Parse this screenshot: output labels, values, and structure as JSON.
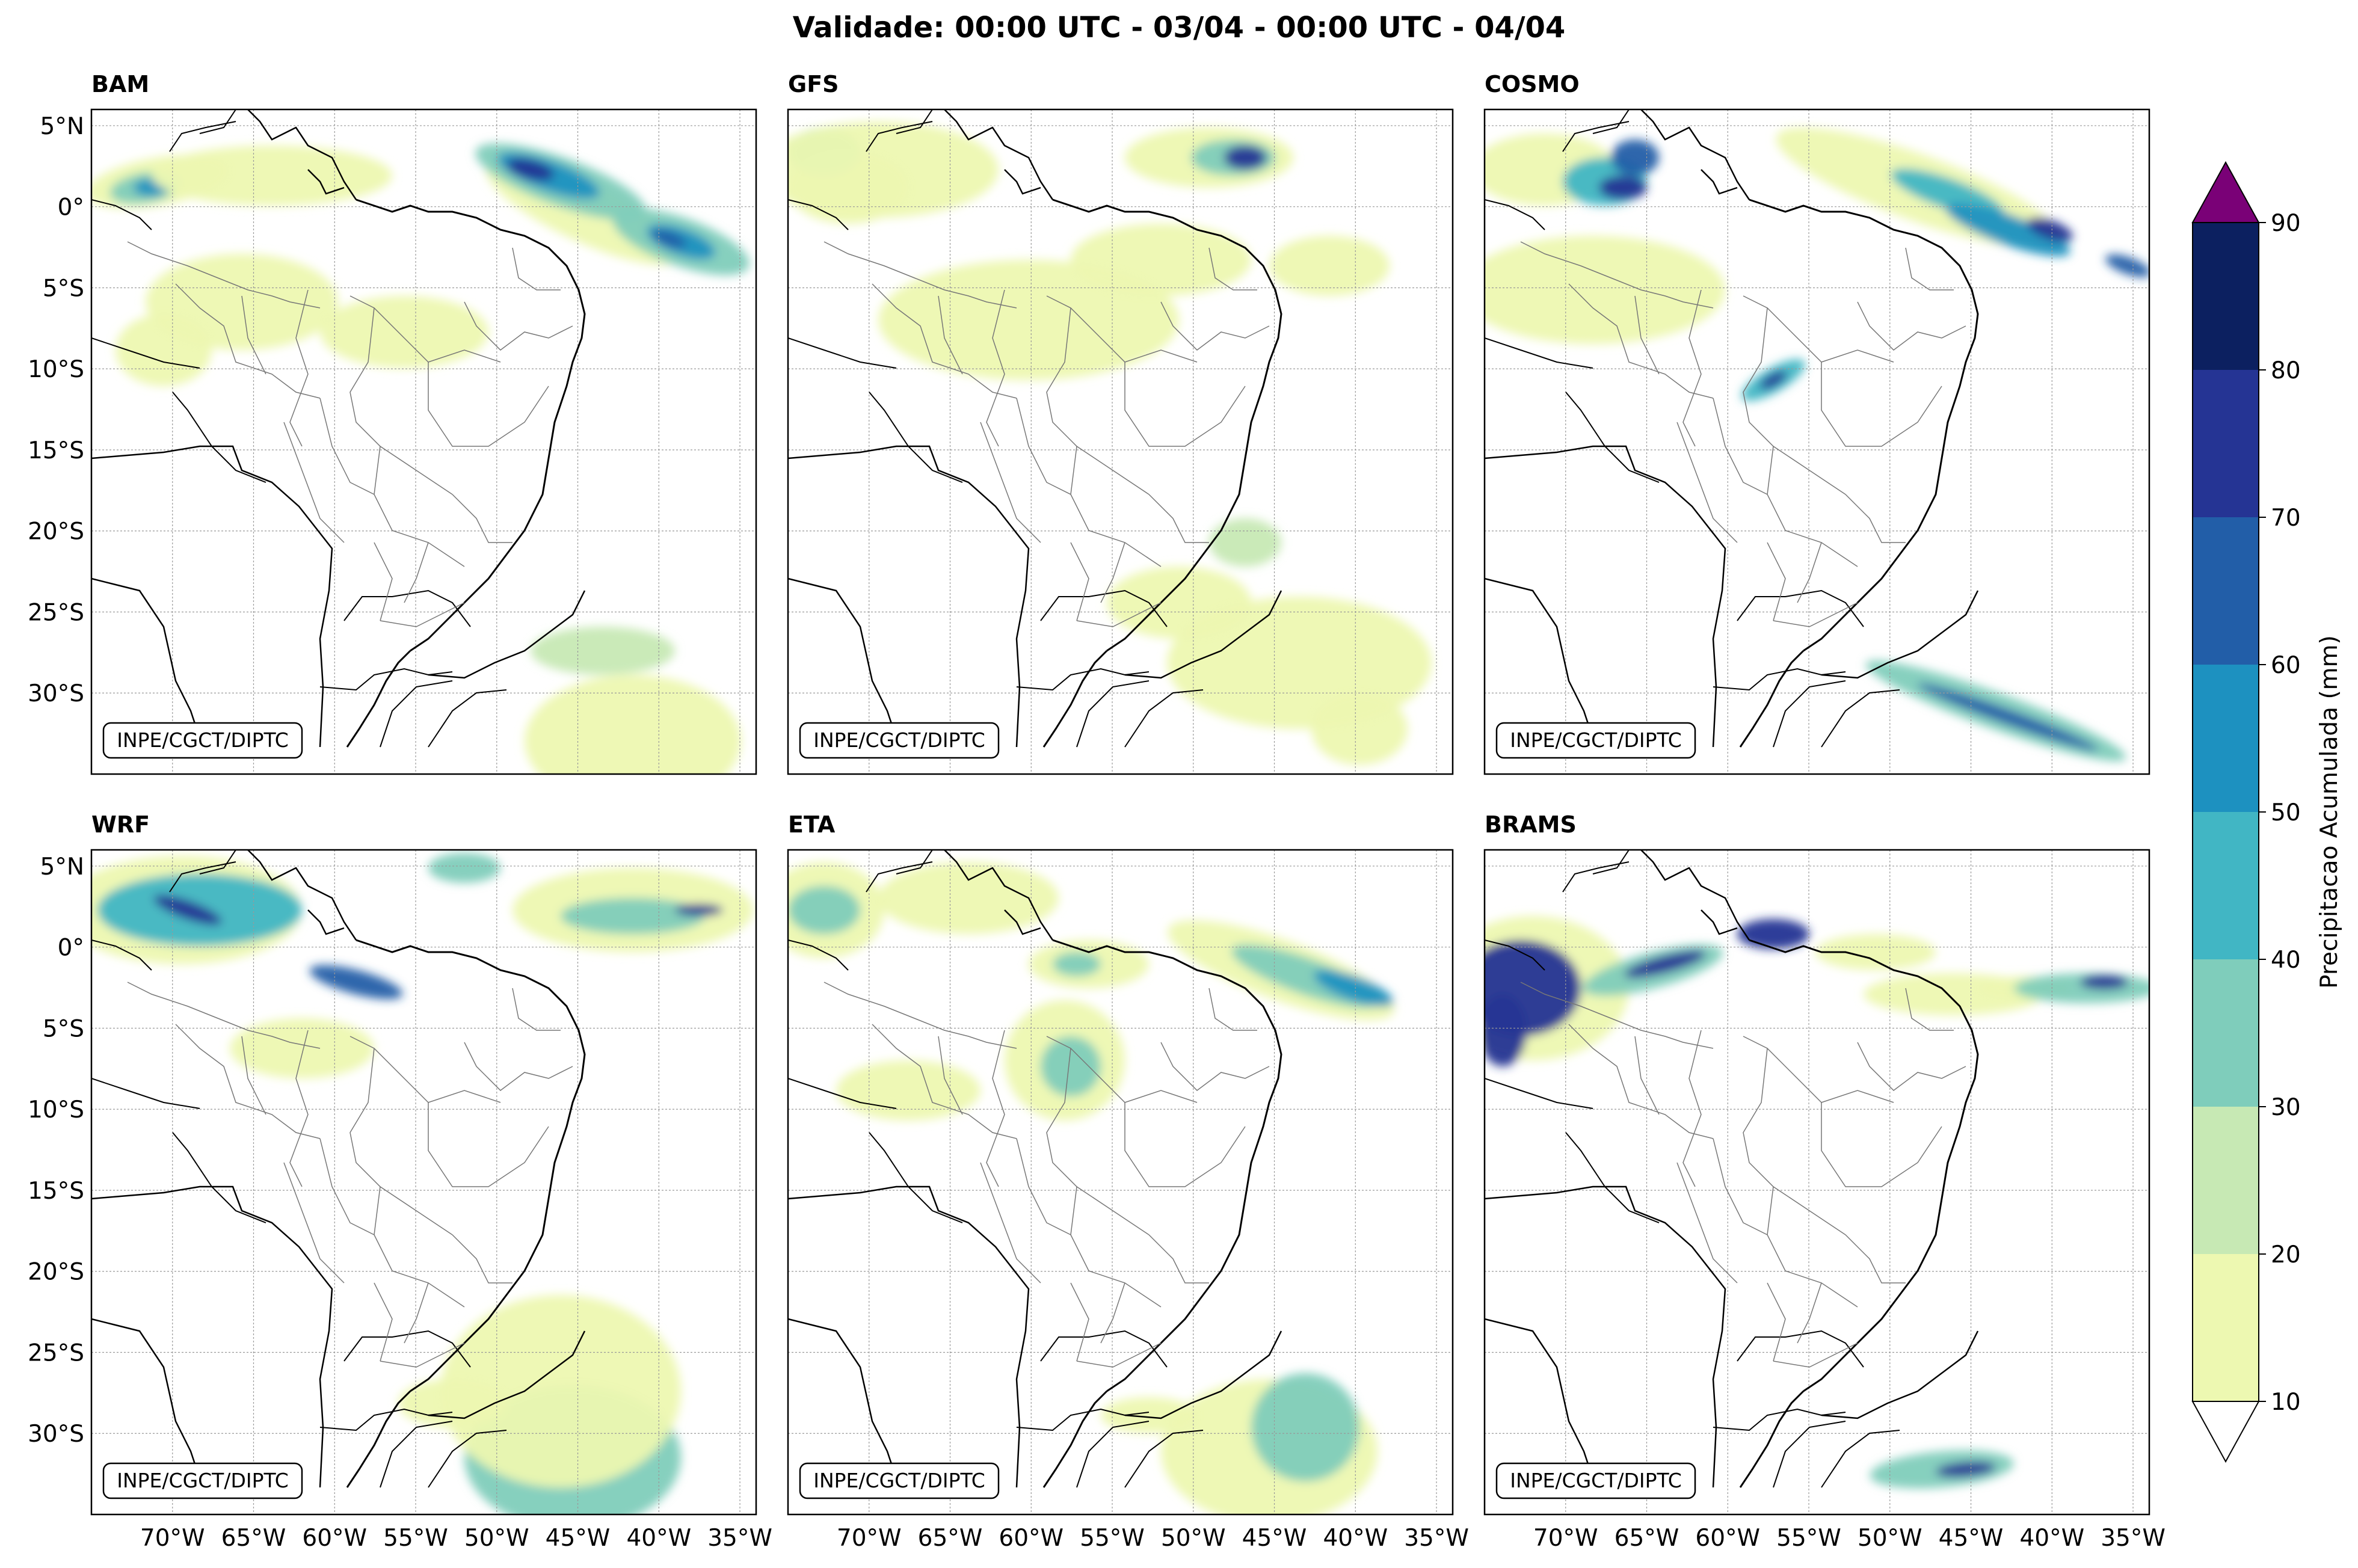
{
  "title": "Validade: 00:00 UTC - 03/04 - 00:00 UTC - 04/04",
  "credit": "INPE/CGCT/DIPTC",
  "panels": [
    {
      "name": "BAM"
    },
    {
      "name": "GFS"
    },
    {
      "name": "COSMO"
    },
    {
      "name": "WRF"
    },
    {
      "name": "ETA"
    },
    {
      "name": "BRAMS"
    }
  ],
  "lat_ticks": [
    "5°N",
    "0°",
    "5°S",
    "10°S",
    "15°S",
    "20°S",
    "25°S",
    "30°S"
  ],
  "lon_ticks": [
    "70°W",
    "65°W",
    "60°W",
    "55°W",
    "50°W",
    "45°W",
    "40°W",
    "35°W"
  ],
  "colorbar": {
    "label": "Precipitacao Acumulada (mm)",
    "ticks": [
      "10",
      "20",
      "30",
      "40",
      "50",
      "60",
      "70",
      "80",
      "90"
    ],
    "levels": [
      10,
      20,
      30,
      40,
      50,
      60,
      70,
      80,
      90
    ],
    "colors": [
      "#edf8b1",
      "#c7e9b4",
      "#7fcdbb",
      "#41b6c4",
      "#1d91c0",
      "#225ea8",
      "#253494",
      "#0c2060"
    ],
    "over_color": "#7a0177"
  },
  "chart_data": {
    "type": "map",
    "variable": "Precipitacao Acumulada (mm)",
    "extent": {
      "lon": [
        -75,
        -34
      ],
      "lat": [
        -35,
        6
      ]
    },
    "scale": "discrete",
    "panels": [
      "BAM",
      "GFS",
      "COSMO",
      "WRF",
      "ETA",
      "BRAMS"
    ]
  }
}
